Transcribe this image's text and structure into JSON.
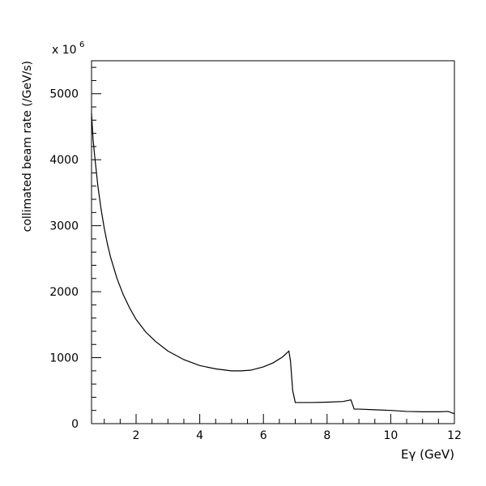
{
  "chart_data": {
    "type": "line",
    "title": "",
    "xlabel": "Eγ (GeV)",
    "ylabel": "collimated beam rate (/GeV/s)",
    "y_multiplier_label": "x 10",
    "y_multiplier_exponent": "6",
    "xlim": [
      0.6,
      12
    ],
    "ylim": [
      0,
      5500
    ],
    "x_ticks": [
      2,
      4,
      6,
      8,
      10,
      12
    ],
    "y_ticks": [
      0,
      1000,
      2000,
      3000,
      4000,
      5000
    ],
    "x_minor_step": 0.5,
    "y_minor_step": 200,
    "grid": false,
    "legend": "none",
    "series": [
      {
        "x": [
          0.6,
          0.65,
          0.7,
          0.8,
          0.9,
          1.0,
          1.1,
          1.2,
          1.4,
          1.6,
          1.8,
          2.0,
          2.3,
          2.6,
          3.0,
          3.5,
          4.0,
          4.5,
          5.0,
          5.3,
          5.6,
          6.0,
          6.3,
          6.6,
          6.8,
          6.85,
          6.92,
          7.0,
          7.5,
          8.0,
          8.5,
          8.75,
          8.85,
          9.0,
          9.5,
          10.0,
          10.5,
          11.0,
          11.5,
          11.8,
          12.0
        ],
        "y": [
          4700,
          4300,
          4050,
          3600,
          3250,
          2960,
          2720,
          2520,
          2200,
          1950,
          1750,
          1580,
          1390,
          1250,
          1100,
          970,
          880,
          830,
          800,
          800,
          810,
          860,
          920,
          1010,
          1100,
          950,
          500,
          320,
          320,
          325,
          335,
          360,
          220,
          220,
          210,
          200,
          185,
          180,
          180,
          185,
          150
        ]
      }
    ]
  }
}
